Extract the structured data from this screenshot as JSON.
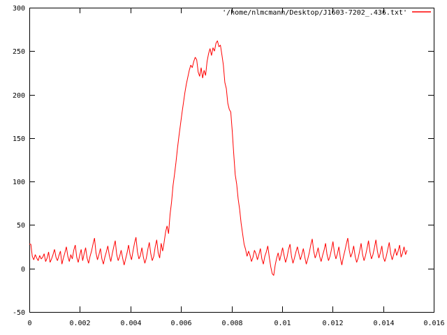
{
  "figure": {
    "background_color": "#ffffff",
    "border_color": "#000000",
    "text_color": "#000000",
    "line_color": "#ff0000"
  },
  "chart_data": {
    "type": "line",
    "title": "",
    "xlabel": "",
    "ylabel": "",
    "grid": false,
    "legend_position": "top-right-inside",
    "axes": {
      "xlim": [
        0,
        0.016
      ],
      "ylim": [
        -50,
        300
      ],
      "xticks": [
        0,
        0.002,
        0.004,
        0.006,
        0.008,
        0.01,
        0.012,
        0.014,
        0.016
      ],
      "xtick_labels": [
        "0",
        "0.002",
        "0.004",
        "0.006",
        "0.008",
        "0.01",
        "0.012",
        "0.014",
        "0.016"
      ],
      "yticks": [
        -50,
        0,
        50,
        100,
        150,
        200,
        250,
        300
      ],
      "ytick_labels": [
        "-50",
        "0",
        "50",
        "100",
        "150",
        "200",
        "250",
        "300"
      ],
      "tick_direction": "in",
      "mirror_ticks": true
    },
    "series": [
      {
        "name": "'/home/nlmcmann/Desktop/J1603-7202_.436.txt'",
        "color": "#ff0000",
        "x_start": 0,
        "x_step": 5.86e-05,
        "y": [
          28,
          28,
          14,
          10,
          16,
          12,
          9,
          15,
          11,
          13,
          17,
          8,
          12,
          19,
          7,
          11,
          16,
          22,
          13,
          9,
          15,
          20,
          5,
          12,
          18,
          25,
          14,
          8,
          16,
          11,
          21,
          27,
          13,
          7,
          15,
          22,
          9,
          17,
          24,
          12,
          6,
          14,
          20,
          28,
          35,
          18,
          10,
          16,
          23,
          11,
          5,
          13,
          19,
          26,
          15,
          8,
          17,
          25,
          32,
          16,
          9,
          14,
          21,
          12,
          4,
          11,
          18,
          27,
          16,
          10,
          20,
          29,
          36,
          19,
          11,
          15,
          24,
          13,
          6,
          12,
          22,
          30,
          17,
          9,
          14,
          25,
          33,
          18,
          12,
          29,
          20,
          30,
          42,
          49,
          40,
          62,
          76,
          95,
          108,
          122,
          138,
          152,
          165,
          178,
          190,
          202,
          212,
          220,
          228,
          234,
          231,
          238,
          243,
          240,
          226,
          221,
          231,
          219,
          228,
          222,
          238,
          247,
          253,
          245,
          254,
          250,
          259,
          262,
          255,
          257,
          246,
          234,
          214,
          207,
          190,
          183,
          180,
          158,
          132,
          108,
          97,
          80,
          68,
          52,
          40,
          28,
          22,
          14,
          20,
          15,
          8,
          13,
          21,
          17,
          10,
          16,
          23,
          11,
          5,
          14,
          19,
          26,
          13,
          2,
          -6,
          -8,
          4,
          12,
          18,
          9,
          16,
          24,
          15,
          7,
          13,
          22,
          28,
          14,
          6,
          12,
          19,
          25,
          17,
          10,
          16,
          23,
          13,
          5,
          11,
          18,
          27,
          34,
          20,
          12,
          17,
          24,
          14,
          8,
          15,
          21,
          29,
          16,
          9,
          14,
          22,
          31,
          18,
          11,
          17,
          25,
          12,
          4,
          13,
          20,
          28,
          35,
          21,
          13,
          18,
          26,
          14,
          7,
          12,
          20,
          29,
          16,
          9,
          15,
          23,
          32,
          19,
          11,
          16,
          24,
          33,
          20,
          12,
          18,
          26,
          13,
          8,
          14,
          22,
          30,
          17,
          10,
          16,
          23,
          15,
          20,
          27,
          13,
          18,
          25,
          16,
          21
        ]
      }
    ]
  }
}
